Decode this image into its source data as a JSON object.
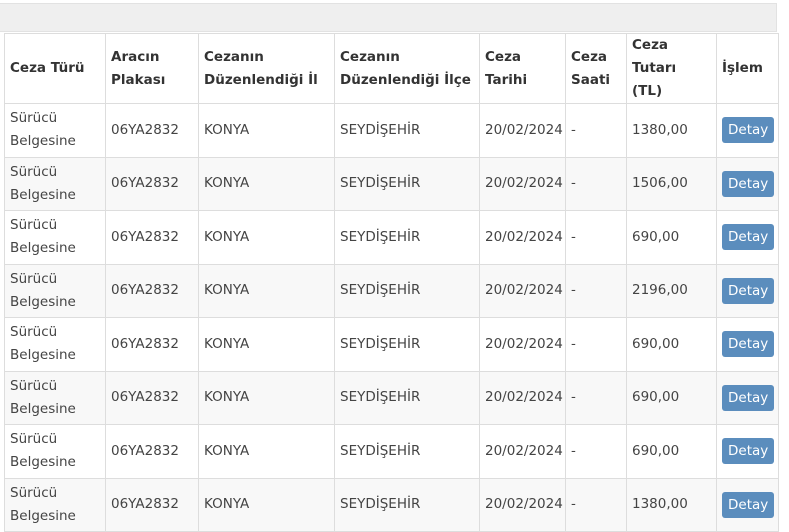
{
  "table": {
    "headers": [
      "Ceza Türü",
      "Aracın Plakası",
      "Cezanın Düzenlendiği İl",
      "Cezanın Düzenlendiği İlçe",
      "Ceza Tarihi",
      "Ceza Saati",
      "Ceza Tutarı (TL)",
      "İşlem"
    ],
    "rows": [
      [
        "Sürücü Belgesine",
        "06YA2832",
        "KONYA",
        "SEYDİŞEHİR",
        "20/02/2024",
        "-",
        "1380,00",
        "Detay"
      ],
      [
        "Sürücü Belgesine",
        "06YA2832",
        "KONYA",
        "SEYDİŞEHİR",
        "20/02/2024",
        "-",
        "1506,00",
        "Detay"
      ],
      [
        "Sürücü Belgesine",
        "06YA2832",
        "KONYA",
        "SEYDİŞEHİR",
        "20/02/2024",
        "-",
        "690,00",
        "Detay"
      ],
      [
        "Sürücü Belgesine",
        "06YA2832",
        "KONYA",
        "SEYDİŞEHİR",
        "20/02/2024",
        "-",
        "2196,00",
        "Detay"
      ],
      [
        "Sürücü Belgesine",
        "06YA2832",
        "KONYA",
        "SEYDİŞEHİR",
        "20/02/2024",
        "-",
        "690,00",
        "Detay"
      ],
      [
        "Sürücü Belgesine",
        "06YA2832",
        "KONYA",
        "SEYDİŞEHİR",
        "20/02/2024",
        "-",
        "690,00",
        "Detay"
      ],
      [
        "Sürücü Belgesine",
        "06YA2832",
        "KONYA",
        "SEYDİŞEHİR",
        "20/02/2024",
        "-",
        "690,00",
        "Detay"
      ],
      [
        "Sürücü Belgesine",
        "06YA2832",
        "KONYA",
        "SEYDİŞEHİR",
        "20/02/2024",
        "-",
        "1380,00",
        "Detay"
      ]
    ]
  },
  "colors": {
    "button": "#5b8dbd"
  }
}
